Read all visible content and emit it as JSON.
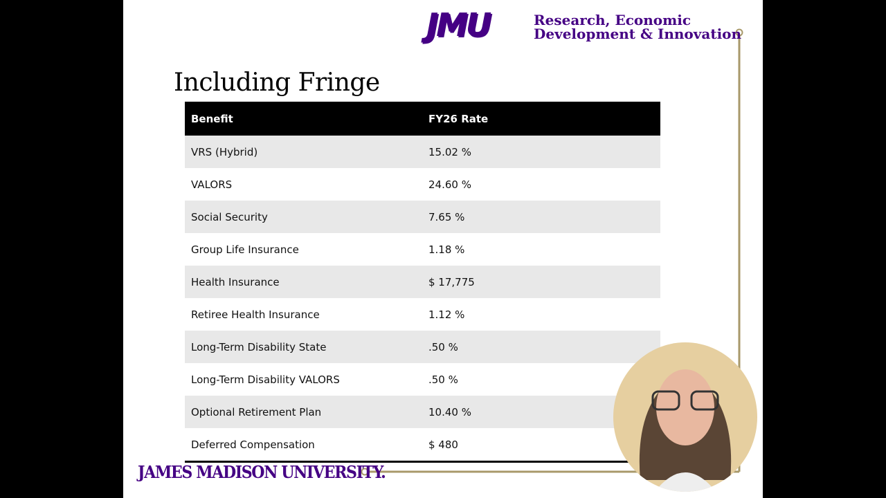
{
  "header": {
    "logo": "JMU",
    "unit_line1": "Research, Economic",
    "unit_line2": "Development & Innovation"
  },
  "title": "Including Fringe",
  "table": {
    "columns": [
      "Benefit",
      "FY26 Rate"
    ],
    "rows": [
      [
        "VRS (Hybrid)",
        "15.02 %"
      ],
      [
        "VALORS",
        "24.60 %"
      ],
      [
        "Social Security",
        "7.65 %"
      ],
      [
        "Group Life Insurance",
        "1.18 %"
      ],
      [
        "Health Insurance",
        "$ 17,775"
      ],
      [
        "Retiree Health Insurance",
        "1.12 %"
      ],
      [
        "Long-Term Disability State",
        ".50 %"
      ],
      [
        "Long-Term Disability VALORS",
        ".50 %"
      ],
      [
        "Optional Retirement Plan",
        "10.40 %"
      ],
      [
        "Deferred Compensation",
        "$ 480"
      ]
    ]
  },
  "footer": "JAMES MADISON UNIVERSITY."
}
